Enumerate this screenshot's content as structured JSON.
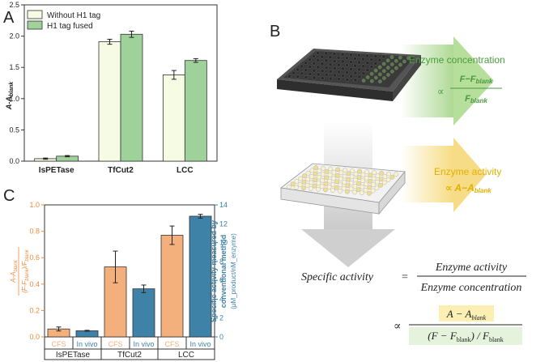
{
  "panels": {
    "a": "A",
    "b": "B",
    "c": "C"
  },
  "chart_data": [
    {
      "type": "bar",
      "panel": "A",
      "categories": [
        "IsPETase",
        "TfCut2",
        "LCC"
      ],
      "ylabel": {
        "main": "A-A",
        "sub": "blank"
      },
      "ylim": [
        0,
        2.5
      ],
      "yticks": [
        "0.0",
        "0.5",
        "1.0",
        "1.5",
        "2.0",
        "2.5"
      ],
      "legend_position": "top-left",
      "series": [
        {
          "name": "Without H1 tag",
          "color": "#f6fbe4",
          "values": [
            0.04,
            1.91,
            1.38
          ],
          "errors": [
            0.01,
            0.04,
            0.07
          ]
        },
        {
          "name": "H1 tag fused",
          "color": "#9fd19b",
          "values": [
            0.08,
            2.03,
            1.61
          ],
          "errors": [
            0.01,
            0.05,
            0.03
          ]
        }
      ]
    },
    {
      "type": "bar",
      "panel": "C",
      "groups": [
        "IsPETase",
        "TfCut2",
        "LCC"
      ],
      "subcategories": [
        "CFS",
        "In vivo"
      ],
      "ylabel_left": "(A-A_blank) / ((F-F_blank)/F_blank)",
      "ylabel_right": {
        "line1": "Specific activity measured by",
        "line2": "conventional method",
        "line3": "(μM_product/nM_enzyme)"
      },
      "ylim_left": [
        0,
        1.0
      ],
      "ylim_right": [
        0,
        14
      ],
      "yticks_left": [
        "0.0",
        "0.2",
        "0.4",
        "0.6",
        "0.8",
        "1.0"
      ],
      "yticks_right": [
        "0",
        "2",
        "4",
        "6",
        "8",
        "10",
        "12",
        "14"
      ],
      "series": [
        {
          "name": "CFS",
          "axis": "left",
          "color": "#f4b07c",
          "values": [
            0.06,
            0.53,
            0.77
          ],
          "errors": [
            0.015,
            0.12,
            0.07
          ]
        },
        {
          "name": "In vivo",
          "axis": "right",
          "color": "#3e82a8",
          "values": [
            0.65,
            5.1,
            12.8
          ],
          "errors": [
            0.05,
            0.4,
            0.2
          ]
        }
      ]
    }
  ],
  "diagram": {
    "enzyme_concentration": "Enzyme concentration",
    "prop": "∝",
    "frac_top_1": "F−F",
    "frac_top_2": "blank",
    "frac_bottom_1": "F",
    "frac_bottom_2": "blank",
    "enzyme_activity": "Enzyme activity",
    "activity_expr_1": "∝ A−A",
    "activity_expr_2": "blank"
  },
  "equation": {
    "lhs": "Specific activity",
    "eq": "=",
    "num": "Enzyme activity",
    "den": "Enzyme concentration",
    "prop": "∝",
    "num2_1": "A − A",
    "num2_2": "blank",
    "den2_1": "(F − F",
    "den2_2": "blank",
    "den2_3": ") / F",
    "den2_4": "blank"
  },
  "colors": {
    "green_text": "#4a9a3c",
    "yellow_text": "#e0b000",
    "left_axis": "#f08a3c",
    "right_axis": "#3e82a8"
  }
}
